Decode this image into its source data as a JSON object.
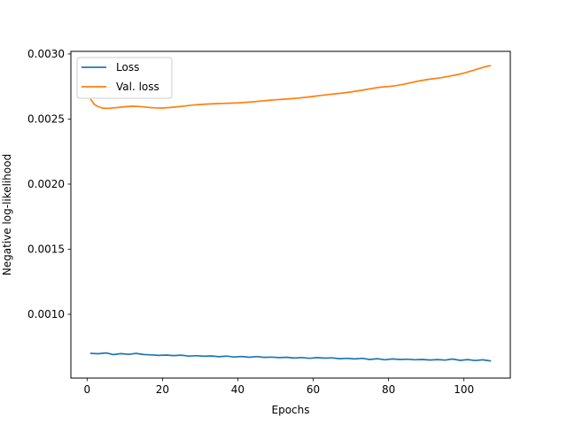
{
  "chart_data": {
    "type": "line",
    "xlabel": "Epochs",
    "ylabel": "Negative log-likelihood",
    "xlim": [
      -4.3,
      112.3
    ],
    "ylim": [
      0.00051,
      0.00302
    ],
    "xticks": [
      {
        "value": 0,
        "label": "0"
      },
      {
        "value": 20,
        "label": "20"
      },
      {
        "value": 40,
        "label": "40"
      },
      {
        "value": 60,
        "label": "60"
      },
      {
        "value": 80,
        "label": "80"
      },
      {
        "value": 100,
        "label": "100"
      }
    ],
    "yticks": [
      {
        "value": 0.001,
        "label": "0.0010"
      },
      {
        "value": 0.0015,
        "label": "0.0015"
      },
      {
        "value": 0.002,
        "label": "0.0020"
      },
      {
        "value": 0.0025,
        "label": "0.0025"
      },
      {
        "value": 0.003,
        "label": "0.0030"
      }
    ],
    "grid": false,
    "legend_position": "upper-left",
    "series": [
      {
        "name": "Loss",
        "color": "#1f77b4",
        "x": [
          1,
          3,
          5,
          7,
          9,
          11,
          13,
          15,
          17,
          19,
          21,
          23,
          25,
          27,
          29,
          31,
          33,
          35,
          37,
          39,
          41,
          43,
          45,
          47,
          49,
          51,
          53,
          55,
          57,
          59,
          61,
          63,
          65,
          67,
          69,
          71,
          73,
          75,
          77,
          79,
          81,
          83,
          85,
          87,
          89,
          91,
          93,
          95,
          97,
          99,
          101,
          103,
          105,
          107
        ],
        "y": [
          0.0007,
          0.000697,
          0.000703,
          0.00069,
          0.000698,
          0.000692,
          0.0007,
          0.000691,
          0.000688,
          0.000684,
          0.000687,
          0.000683,
          0.000686,
          0.000679,
          0.000682,
          0.000677,
          0.00068,
          0.000674,
          0.000679,
          0.000672,
          0.000676,
          0.00067,
          0.000675,
          0.000669,
          0.000671,
          0.000667,
          0.00067,
          0.000664,
          0.000668,
          0.000662,
          0.000667,
          0.000663,
          0.000665,
          0.000659,
          0.000662,
          0.000657,
          0.000662,
          0.000653,
          0.000659,
          0.000651,
          0.000657,
          0.000653,
          0.000655,
          0.000651,
          0.000653,
          0.000649,
          0.000652,
          0.000648,
          0.000656,
          0.000646,
          0.000652,
          0.000645,
          0.00065,
          0.000642
        ]
      },
      {
        "name": "Val. loss",
        "color": "#ff7f0e",
        "x": [
          1,
          2,
          3,
          4,
          5,
          6,
          8,
          10,
          12,
          14,
          16,
          18,
          20,
          22,
          24,
          26,
          28,
          30,
          32,
          34,
          36,
          38,
          40,
          42,
          44,
          46,
          48,
          50,
          52,
          54,
          56,
          58,
          60,
          62,
          64,
          66,
          68,
          70,
          72,
          74,
          76,
          78,
          80,
          82,
          84,
          86,
          88,
          90,
          92,
          94,
          96,
          98,
          100,
          102,
          104,
          106,
          107
        ],
        "y": [
          0.00265,
          0.00261,
          0.002595,
          0.002585,
          0.002582,
          0.002583,
          0.002588,
          0.002595,
          0.002598,
          0.002596,
          0.00259,
          0.002586,
          0.002585,
          0.002589,
          0.002594,
          0.0026,
          0.002607,
          0.002612,
          0.002615,
          0.002618,
          0.00262,
          0.002622,
          0.002624,
          0.002628,
          0.002632,
          0.002638,
          0.002643,
          0.002648,
          0.002652,
          0.002656,
          0.002661,
          0.002667,
          0.002674,
          0.002681,
          0.002688,
          0.002694,
          0.0027,
          0.002708,
          0.002717,
          0.002727,
          0.002737,
          0.002745,
          0.00275,
          0.002757,
          0.002767,
          0.00278,
          0.002792,
          0.002802,
          0.00281,
          0.002818,
          0.002828,
          0.00284,
          0.002853,
          0.00287,
          0.002888,
          0.002905,
          0.00291
        ]
      }
    ]
  }
}
